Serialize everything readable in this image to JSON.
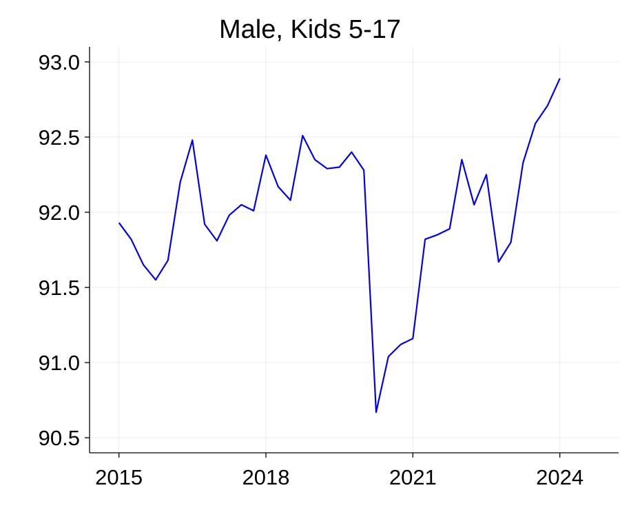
{
  "chart_data": {
    "type": "line",
    "title": "Male, Kids 5-17",
    "xlabel": "",
    "ylabel": "",
    "xlim": [
      2014.4,
      2025.2
    ],
    "ylim": [
      90.4,
      93.1
    ],
    "x_ticks": [
      2015,
      2018,
      2021,
      2024
    ],
    "y_ticks": [
      90.5,
      91.0,
      91.5,
      92.0,
      92.5,
      93.0
    ],
    "y_tick_labels": [
      "90.5",
      "91.0",
      "91.5",
      "92.0",
      "92.5",
      "93.0"
    ],
    "grid": true,
    "line_color": "#0000ee",
    "series": [
      {
        "x": [
          2015.0,
          2015.25,
          2015.5,
          2015.75,
          2016.0,
          2016.25,
          2016.5,
          2016.75,
          2017.0,
          2017.25,
          2017.5,
          2017.75,
          2018.0,
          2018.25,
          2018.5,
          2018.75,
          2019.0,
          2019.25,
          2019.5,
          2019.75,
          2020.0,
          2020.25,
          2020.5,
          2020.75,
          2021.0,
          2021.25,
          2021.5,
          2021.75,
          2022.0,
          2022.25,
          2022.5,
          2022.75,
          2023.0,
          2023.25,
          2023.5,
          2023.75,
          2024.0
        ],
        "values": [
          91.93,
          91.82,
          91.65,
          91.55,
          91.68,
          92.2,
          92.48,
          91.92,
          91.81,
          91.98,
          92.05,
          92.01,
          92.38,
          92.17,
          92.08,
          92.51,
          92.35,
          92.29,
          92.3,
          92.4,
          92.28,
          90.67,
          91.04,
          91.12,
          91.16,
          91.82,
          91.85,
          91.89,
          92.35,
          92.05,
          92.25,
          91.67,
          91.8,
          92.33,
          92.59,
          92.71,
          92.89
        ]
      }
    ]
  }
}
